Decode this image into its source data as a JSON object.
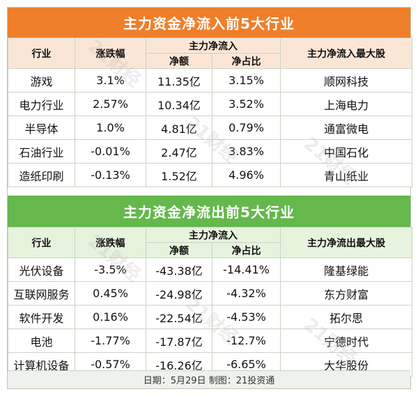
{
  "inflow": {
    "title": "主力资金净流入前5大行业",
    "headers": {
      "industry": "行业",
      "change": "涨跌幅",
      "group": "主力净流入",
      "net": "净额",
      "ratio": "净占比",
      "top_stock": "主力净流入最大股"
    },
    "rows": [
      {
        "industry": "游戏",
        "change": "3.1%",
        "net": "11.35亿",
        "ratio": "3.15%",
        "stock": "顺网科技"
      },
      {
        "industry": "电力行业",
        "change": "2.57%",
        "net": "10.34亿",
        "ratio": "3.52%",
        "stock": "上海电力"
      },
      {
        "industry": "半导体",
        "change": "1.0%",
        "net": "4.81亿",
        "ratio": "0.79%",
        "stock": "通富微电"
      },
      {
        "industry": "石油行业",
        "change": "-0.01%",
        "net": "2.47亿",
        "ratio": "3.83%",
        "stock": "中国石化"
      },
      {
        "industry": "造纸印刷",
        "change": "-0.13%",
        "net": "1.52亿",
        "ratio": "4.96%",
        "stock": "青山纸业"
      }
    ]
  },
  "outflow": {
    "title": "主力资金净流出前5大行业",
    "headers": {
      "industry": "行业",
      "change": "涨跌幅",
      "group": "主力净流入",
      "net": "净额",
      "ratio": "净占比",
      "top_stock": "主力净流出最大股"
    },
    "rows": [
      {
        "industry": "光伏设备",
        "change": "-3.5%",
        "net": "-43.38亿",
        "ratio": "-14.41%",
        "stock": "隆基绿能"
      },
      {
        "industry": "互联网服务",
        "change": "0.45%",
        "net": "-24.98亿",
        "ratio": "-4.32%",
        "stock": "东方财富"
      },
      {
        "industry": "软件开发",
        "change": "0.16%",
        "net": "-22.54亿",
        "ratio": "-4.53%",
        "stock": "拓尔思"
      },
      {
        "industry": "电池",
        "change": "-1.77%",
        "net": "-17.87亿",
        "ratio": "-12.7%",
        "stock": "宁德时代"
      },
      {
        "industry": "计算机设备",
        "change": "-0.57%",
        "net": "-16.26亿",
        "ratio": "-6.65%",
        "stock": "大华股份"
      }
    ]
  },
  "footer": "日期：5月29日 制图：21投资通",
  "watermark": "21财经",
  "colors": {
    "orange": "#ef7f2a",
    "green": "#64b84c",
    "orange_header": "#fbe6d6",
    "green_header": "#e6f3dd"
  }
}
